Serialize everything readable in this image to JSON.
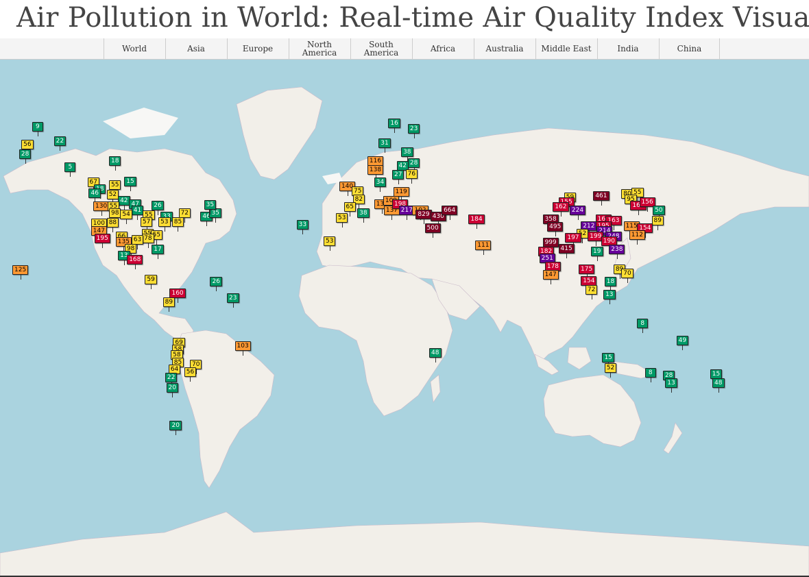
{
  "header": {
    "title": "Air Pollution in World: Real-time Air Quality Index Visual Map"
  },
  "tabs": [
    {
      "label": "World"
    },
    {
      "label": "Asia"
    },
    {
      "label": "Europe"
    },
    {
      "label": "North\nAmerica"
    },
    {
      "label": "South\nAmerica"
    },
    {
      "label": "Africa"
    },
    {
      "label": "Australia"
    },
    {
      "label": "Middle East"
    },
    {
      "label": "India"
    },
    {
      "label": "China"
    }
  ],
  "colors": {
    "ocean": "#aad3df",
    "land": "#f2efe9",
    "ice": "#f7f7f5",
    "border": "#c9a3c9",
    "good": "#009966",
    "moderate": "#ffde33",
    "unhealthy_sensitive": "#ff9933",
    "unhealthy": "#cc0033",
    "very_unhealthy": "#660099",
    "hazardous": "#7e0023"
  },
  "markers": [
    {
      "v": "9",
      "lon": -147.7,
      "lat": 64.8
    },
    {
      "v": "22",
      "lon": -138,
      "lat": 62.0
    },
    {
      "v": "56",
      "lon": -152.5,
      "lat": 61.2
    },
    {
      "v": "28",
      "lon": -153.5,
      "lat": 59.0
    },
    {
      "v": "5",
      "lon": -133.2,
      "lat": 56.0
    },
    {
      "v": "18",
      "lon": -113.5,
      "lat": 57.5
    },
    {
      "v": "67",
      "lon": -123.1,
      "lat": 52.0
    },
    {
      "v": "18",
      "lon": -120.2,
      "lat": 50.0
    },
    {
      "v": "55",
      "lon": -113.5,
      "lat": 51.2
    },
    {
      "v": "15",
      "lon": -106.7,
      "lat": 52.1
    },
    {
      "v": "46",
      "lon": -122.5,
      "lat": 48.8
    },
    {
      "v": "52",
      "lon": -114.5,
      "lat": 48.3
    },
    {
      "v": "42",
      "lon": -109.5,
      "lat": 46.5
    },
    {
      "v": "47",
      "lon": -104.5,
      "lat": 45.5
    },
    {
      "v": "26",
      "lon": -94.5,
      "lat": 45.0
    },
    {
      "v": "130",
      "lon": -120.5,
      "lat": 44.8
    },
    {
      "v": "55",
      "lon": -114.2,
      "lat": 44.7
    },
    {
      "v": "41",
      "lon": -103.5,
      "lat": 43.5
    },
    {
      "v": "98",
      "lon": -113.5,
      "lat": 42.5
    },
    {
      "v": "54",
      "lon": -108.5,
      "lat": 42.2
    },
    {
      "v": "55",
      "lon": -98.5,
      "lat": 41.9
    },
    {
      "v": "33",
      "lon": -90.5,
      "lat": 41.5
    },
    {
      "v": "72",
      "lon": -82.5,
      "lat": 42.5
    },
    {
      "v": "46",
      "lon": -72.8,
      "lat": 41.5
    },
    {
      "v": "35",
      "lon": -68.8,
      "lat": 42.5
    },
    {
      "v": "35",
      "lon": -71.2,
      "lat": 45.3
    },
    {
      "v": "100",
      "lon": -121.5,
      "lat": 39.0
    },
    {
      "v": "88",
      "lon": -114.5,
      "lat": 39.2
    },
    {
      "v": "57",
      "lon": -99.5,
      "lat": 39.5
    },
    {
      "v": "53",
      "lon": -91.5,
      "lat": 39.5
    },
    {
      "v": "85",
      "lon": -85.5,
      "lat": 39.5
    },
    {
      "v": "147",
      "lon": -121.5,
      "lat": 36.5
    },
    {
      "v": "195",
      "lon": -120.0,
      "lat": 33.6
    },
    {
      "v": "66",
      "lon": -110.5,
      "lat": 34.5
    },
    {
      "v": "55",
      "lon": -99.0,
      "lat": 35.5
    },
    {
      "v": "55",
      "lon": -95.0,
      "lat": 35.0
    },
    {
      "v": "78",
      "lon": -98.8,
      "lat": 33.6
    },
    {
      "v": "135",
      "lon": -110.5,
      "lat": 32.2
    },
    {
      "v": "63",
      "lon": -103.5,
      "lat": 33.0
    },
    {
      "v": "98",
      "lon": -106.5,
      "lat": 29.8
    },
    {
      "v": "17",
      "lon": -94.5,
      "lat": 29.5
    },
    {
      "v": "13",
      "lon": -109.5,
      "lat": 27.0
    },
    {
      "v": "168",
      "lon": -105.5,
      "lat": 25.4
    },
    {
      "v": "125",
      "lon": -156.5,
      "lat": 21.0
    },
    {
      "v": "59",
      "lon": -97.5,
      "lat": 17.0
    },
    {
      "v": "160",
      "lon": -86.5,
      "lat": 11.0
    },
    {
      "v": "89",
      "lon": -89.5,
      "lat": 7.0
    },
    {
      "v": "26",
      "lon": -68.5,
      "lat": 16.0
    },
    {
      "v": "23",
      "lon": -61.0,
      "lat": 9.0
    },
    {
      "v": "69",
      "lon": -85.0,
      "lat": -11.0
    },
    {
      "v": "58",
      "lon": -85.5,
      "lat": -14.0
    },
    {
      "v": "58",
      "lon": -86.0,
      "lat": -16.5
    },
    {
      "v": "85",
      "lon": -85.5,
      "lat": -19.5
    },
    {
      "v": "64",
      "lon": -87.0,
      "lat": -22.5
    },
    {
      "v": "70",
      "lon": -77.5,
      "lat": -20.5
    },
    {
      "v": "56",
      "lon": -80.0,
      "lat": -23.5
    },
    {
      "v": "22",
      "lon": -88.5,
      "lat": -26.0
    },
    {
      "v": "20",
      "lon": -88.0,
      "lat": -30.0
    },
    {
      "v": "20",
      "lon": -86.5,
      "lat": -43.5
    },
    {
      "v": "103",
      "lon": -57.5,
      "lat": -12.5
    },
    {
      "v": "33",
      "lon": -30.0,
      "lat": 38.5
    },
    {
      "v": "53",
      "lon": -18.0,
      "lat": 32.5
    },
    {
      "v": "16",
      "lon": 10.8,
      "lat": 65.5
    },
    {
      "v": "23",
      "lon": 19.5,
      "lat": 64.5
    },
    {
      "v": "31",
      "lon": 6.5,
      "lat": 61.5
    },
    {
      "v": "38",
      "lon": 16.5,
      "lat": 59.5
    },
    {
      "v": "116",
      "lon": 1.5,
      "lat": 57.5
    },
    {
      "v": "42",
      "lon": 14.5,
      "lat": 56.3
    },
    {
      "v": "28",
      "lon": 19.5,
      "lat": 57.0
    },
    {
      "v": "138",
      "lon": 1.5,
      "lat": 55.2
    },
    {
      "v": "76",
      "lon": 18.5,
      "lat": 54.2
    },
    {
      "v": "27",
      "lon": 12.5,
      "lat": 54.0
    },
    {
      "v": "34",
      "lon": 4.5,
      "lat": 52.0
    },
    {
      "v": "140",
      "lon": -11.0,
      "lat": 50.8
    },
    {
      "v": "75",
      "lon": -5.5,
      "lat": 49.5
    },
    {
      "v": "119",
      "lon": 13.0,
      "lat": 49.2
    },
    {
      "v": "82",
      "lon": -5.0,
      "lat": 47.0
    },
    {
      "v": "134",
      "lon": 4.5,
      "lat": 45.5
    },
    {
      "v": "109",
      "lon": 8.5,
      "lat": 46.5
    },
    {
      "v": "65",
      "lon": -9.0,
      "lat": 44.5
    },
    {
      "v": "38",
      "lon": -3.0,
      "lat": 42.5
    },
    {
      "v": "137",
      "lon": 8.8,
      "lat": 43.5
    },
    {
      "v": "198",
      "lon": 12.5,
      "lat": 45.5
    },
    {
      "v": "217",
      "lon": 15.5,
      "lat": 43.5
    },
    {
      "v": "102",
      "lon": 21.5,
      "lat": 43.5
    },
    {
      "v": "829",
      "lon": 23.0,
      "lat": 42.0
    },
    {
      "v": "430",
      "lon": 29.5,
      "lat": 41.5
    },
    {
      "v": "664",
      "lon": 34.5,
      "lat": 43.5
    },
    {
      "v": "500",
      "lon": 27.0,
      "lat": 37.5
    },
    {
      "v": "184",
      "lon": 46.5,
      "lat": 40.5
    },
    {
      "v": "111",
      "lon": 49.5,
      "lat": 31.0
    },
    {
      "v": "53",
      "lon": -12.5,
      "lat": 41.0
    },
    {
      "v": "59",
      "lon": 89.0,
      "lat": 47.5
    },
    {
      "v": "461",
      "lon": 102.0,
      "lat": 48.0
    },
    {
      "v": "80",
      "lon": 114.5,
      "lat": 48.5
    },
    {
      "v": "55",
      "lon": 119.0,
      "lat": 49.0
    },
    {
      "v": "95",
      "lon": 116.0,
      "lat": 47.0
    },
    {
      "v": "155",
      "lon": 86.5,
      "lat": 46.0
    },
    {
      "v": "163",
      "lon": 118.5,
      "lat": 45.0
    },
    {
      "v": "156",
      "lon": 122.5,
      "lat": 46.0
    },
    {
      "v": "162",
      "lon": 84.0,
      "lat": 44.5
    },
    {
      "v": "224",
      "lon": 91.5,
      "lat": 43.5
    },
    {
      "v": "50",
      "lon": 128.5,
      "lat": 43.5
    },
    {
      "v": "358",
      "lon": 79.5,
      "lat": 40.5
    },
    {
      "v": "164",
      "lon": 103.0,
      "lat": 40.5
    },
    {
      "v": "163",
      "lon": 107.5,
      "lat": 40.0
    },
    {
      "v": "89",
      "lon": 128.0,
      "lat": 40.0
    },
    {
      "v": "495",
      "lon": 81.5,
      "lat": 37.8
    },
    {
      "v": "212",
      "lon": 96.5,
      "lat": 38.0
    },
    {
      "v": "195",
      "lon": 103.0,
      "lat": 38.0
    },
    {
      "v": "115",
      "lon": 115.5,
      "lat": 38.0
    },
    {
      "v": "154",
      "lon": 121.5,
      "lat": 37.5
    },
    {
      "v": "52",
      "lon": 94.5,
      "lat": 35.5
    },
    {
      "v": "214",
      "lon": 103.5,
      "lat": 36.5
    },
    {
      "v": "112",
      "lon": 118.0,
      "lat": 35.0
    },
    {
      "v": "197",
      "lon": 89.5,
      "lat": 34.0
    },
    {
      "v": "199",
      "lon": 99.5,
      "lat": 34.5
    },
    {
      "v": "248",
      "lon": 107.5,
      "lat": 34.5
    },
    {
      "v": "999",
      "lon": 79.5,
      "lat": 32.0
    },
    {
      "v": "190",
      "lon": 105.5,
      "lat": 32.5
    },
    {
      "v": "415",
      "lon": 86.5,
      "lat": 29.8
    },
    {
      "v": "238",
      "lon": 109.0,
      "lat": 29.5
    },
    {
      "v": "182",
      "lon": 77.5,
      "lat": 28.5
    },
    {
      "v": "251",
      "lon": 78.0,
      "lat": 25.8
    },
    {
      "v": "19",
      "lon": 101.0,
      "lat": 28.5
    },
    {
      "v": "178",
      "lon": 80.5,
      "lat": 22.5
    },
    {
      "v": "175",
      "lon": 95.5,
      "lat": 21.5
    },
    {
      "v": "89",
      "lon": 111.0,
      "lat": 21.5
    },
    {
      "v": "70",
      "lon": 114.5,
      "lat": 19.5
    },
    {
      "v": "147",
      "lon": 79.5,
      "lat": 19.0
    },
    {
      "v": "154",
      "lon": 96.5,
      "lat": 16.5
    },
    {
      "v": "72",
      "lon": 98.5,
      "lat": 12.5
    },
    {
      "v": "18",
      "lon": 107.0,
      "lat": 16.0
    },
    {
      "v": "13",
      "lon": 106.5,
      "lat": 10.5
    },
    {
      "v": "48",
      "lon": 29.0,
      "lat": -15.5
    },
    {
      "v": "8",
      "lon": 121.5,
      "lat": -2.5
    },
    {
      "v": "49",
      "lon": 139.0,
      "lat": -10.0
    },
    {
      "v": "15",
      "lon": 106.0,
      "lat": -17.5
    },
    {
      "v": "52",
      "lon": 107.0,
      "lat": -22.0
    },
    {
      "v": "8",
      "lon": 125.0,
      "lat": -24.0
    },
    {
      "v": "28",
      "lon": 133.0,
      "lat": -25.0
    },
    {
      "v": "13",
      "lon": 134.0,
      "lat": -28.0
    },
    {
      "v": "15",
      "lon": 154.0,
      "lat": -24.5
    },
    {
      "v": "48",
      "lon": 155.0,
      "lat": -28.0
    }
  ]
}
